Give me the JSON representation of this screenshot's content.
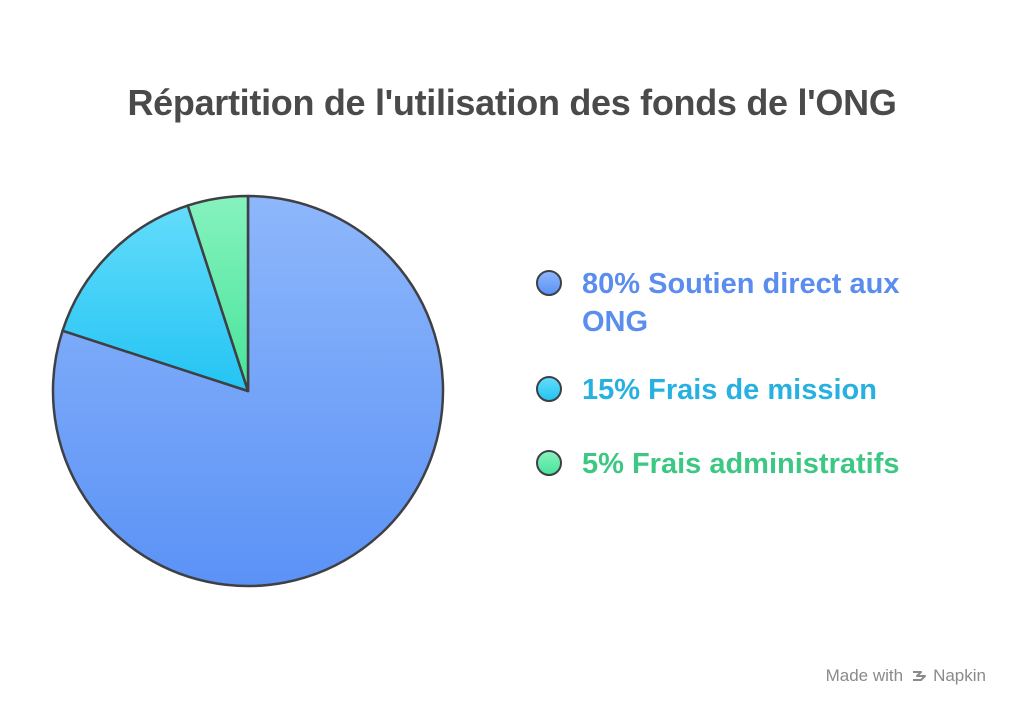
{
  "chart_data": {
    "type": "pie",
    "title": "Répartition de l'utilisation des fonds de l'ONG",
    "slices": [
      {
        "label": "80% Soutien direct aux ONG",
        "value": 80,
        "color": "#5b92f6",
        "color_light": "#8eb7fb",
        "text_color": "#5b8def"
      },
      {
        "label": "15% Frais de mission",
        "value": 15,
        "color": "#24c4f3",
        "color_light": "#63dcfb",
        "text_color": "#27b1e0"
      },
      {
        "label": "5% Frais administratifs",
        "value": 5,
        "color": "#47e49a",
        "color_light": "#86f2be",
        "text_color": "#3cc883"
      }
    ],
    "legend_position": "right"
  },
  "footer": {
    "made_with": "Made with",
    "brand": "Napkin",
    "icon": "napkin-logo-icon"
  }
}
